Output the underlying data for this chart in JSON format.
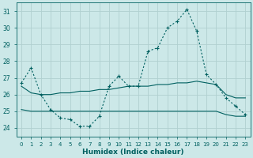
{
  "xlabel": "Humidex (Indice chaleur)",
  "bg_color": "#cce8e8",
  "grid_color": "#b0d0d0",
  "line_color": "#006060",
  "xlim": [
    -0.5,
    23.5
  ],
  "ylim": [
    23.5,
    31.5
  ],
  "yticks": [
    24,
    25,
    26,
    27,
    28,
    29,
    30,
    31
  ],
  "xticks": [
    0,
    1,
    2,
    3,
    4,
    5,
    6,
    7,
    8,
    9,
    10,
    11,
    12,
    13,
    14,
    15,
    16,
    17,
    18,
    19,
    20,
    21,
    22,
    23
  ],
  "xtick_labels": [
    "0",
    "1",
    "2",
    "3",
    "4",
    "5",
    "6",
    "7",
    "8",
    "9",
    "10",
    "11",
    "12",
    "13",
    "14",
    "15",
    "16",
    "17",
    "18",
    "19",
    "20",
    "21",
    "22",
    "23"
  ],
  "s1_x": [
    0,
    1,
    2,
    3,
    4,
    5,
    6,
    7,
    8,
    9,
    10,
    11,
    12,
    13,
    14,
    15,
    16,
    17,
    18,
    19,
    20,
    21,
    22,
    23
  ],
  "s1_y": [
    26.7,
    27.6,
    26.0,
    25.1,
    24.6,
    24.5,
    24.1,
    24.1,
    24.7,
    26.5,
    27.1,
    26.5,
    26.5,
    28.6,
    28.8,
    30.0,
    30.4,
    31.1,
    29.8,
    27.2,
    26.6,
    25.8,
    25.3,
    24.8
  ],
  "s2_x": [
    0,
    1,
    2,
    3,
    4,
    5,
    6,
    7,
    8,
    9,
    10,
    11,
    12,
    13,
    14,
    15,
    16,
    17,
    18,
    19,
    20,
    21,
    22,
    23
  ],
  "s2_y": [
    26.5,
    26.1,
    26.0,
    26.0,
    26.1,
    26.1,
    26.2,
    26.2,
    26.3,
    26.3,
    26.4,
    26.5,
    26.5,
    26.5,
    26.6,
    26.6,
    26.7,
    26.7,
    26.8,
    26.7,
    26.6,
    26.0,
    25.8,
    25.8
  ],
  "s3_x": [
    0,
    1,
    2,
    3,
    4,
    5,
    6,
    7,
    8,
    9,
    10,
    11,
    12,
    13,
    14,
    15,
    16,
    17,
    18,
    19,
    20,
    21,
    22,
    23
  ],
  "s3_y": [
    25.1,
    25.0,
    25.0,
    25.0,
    25.0,
    25.0,
    25.0,
    25.0,
    25.0,
    25.0,
    25.0,
    25.0,
    25.0,
    25.0,
    25.0,
    25.0,
    25.0,
    25.0,
    25.0,
    25.0,
    25.0,
    24.8,
    24.7,
    24.7
  ]
}
